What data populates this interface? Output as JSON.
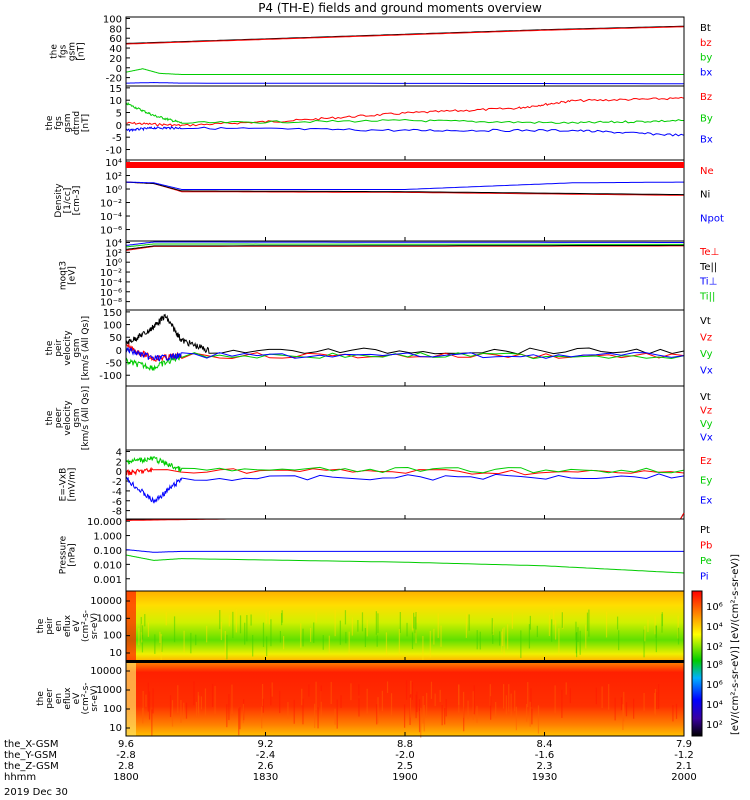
{
  "title": "P4 (TH-E) fields and ground moments overview",
  "date_label": "2019 Dec 30",
  "colors": {
    "black": "#000000",
    "red": "#ff0000",
    "green": "#00cc00",
    "blue": "#0000ff"
  },
  "x_axis": {
    "row_labels": [
      "the_X-GSM",
      "the_Y-GSM",
      "the_Z-GSM",
      "hhmm"
    ],
    "ticks": [
      {
        "x_pos": 0.0,
        "values": [
          "9.6",
          "-2.8",
          "2.8",
          "1800"
        ]
      },
      {
        "x_pos": 0.25,
        "values": [
          "9.2",
          "-2.4",
          "2.6",
          "1830"
        ]
      },
      {
        "x_pos": 0.5,
        "values": [
          "8.8",
          "-2.0",
          "2.5",
          "1900"
        ]
      },
      {
        "x_pos": 0.75,
        "values": [
          "8.4",
          "-1.6",
          "2.3",
          "1930"
        ]
      },
      {
        "x_pos": 1.0,
        "values": [
          "7.9",
          "-1.2",
          "2.1",
          "2000"
        ]
      }
    ]
  },
  "colorbar": {
    "ticks": [
      "10⁶",
      "10⁴",
      "10²"
    ],
    "ticks_lower": [
      "10⁸",
      "10⁶",
      "10⁴",
      "10²"
    ],
    "label": "[eV/(cm²-s-sr-eV)] [eV/(cm²-s-sr-eV)]"
  },
  "chart_data": [
    {
      "type": "line",
      "ylabel": [
        "the",
        "fgs",
        "gsm",
        "[nT]"
      ],
      "ylim": [
        -20,
        100
      ],
      "yticks": [
        "100",
        "80",
        "60",
        "40",
        "20",
        "0",
        "-20"
      ],
      "series": [
        {
          "name": "Bt",
          "color": "black",
          "x": [
            0,
            0.25,
            0.5,
            0.75,
            1
          ],
          "y": [
            54,
            62,
            70,
            78,
            84
          ]
        },
        {
          "name": "bz",
          "color": "red",
          "x": [
            0,
            0.25,
            0.5,
            0.75,
            1
          ],
          "y": [
            53,
            61,
            69,
            77,
            83
          ]
        },
        {
          "name": "by",
          "color": "green",
          "x": [
            0,
            0.03,
            0.06,
            0.1,
            1
          ],
          "y": [
            4,
            10,
            2,
            0,
            0
          ]
        },
        {
          "name": "bx",
          "color": "blue",
          "x": [
            0,
            0.05,
            0.1,
            1
          ],
          "y": [
            -15,
            -14,
            -15,
            -16
          ]
        }
      ]
    },
    {
      "type": "line",
      "ylabel": [
        "the",
        "fgs",
        "gsm",
        "dtrnd",
        "[nT]"
      ],
      "ylim": [
        -15,
        15
      ],
      "yticks": [
        "15",
        "10",
        "5",
        "0",
        "-5",
        "-10"
      ],
      "series": [
        {
          "name": "Bz",
          "color": "red",
          "x": [
            0,
            0.1,
            0.3,
            0.5,
            0.7,
            0.8,
            1
          ],
          "y": [
            0,
            -1,
            1,
            4,
            6,
            9,
            10
          ]
        },
        {
          "name": "By",
          "color": "green",
          "x": [
            0,
            0.05,
            0.1,
            0.5,
            0.8,
            1
          ],
          "y": [
            8,
            3,
            0,
            1,
            0,
            1
          ]
        },
        {
          "name": "Bx",
          "color": "blue",
          "x": [
            0,
            0.05,
            0.1,
            0.5,
            0.8,
            1
          ],
          "y": [
            -3,
            -2,
            -2,
            -3,
            -3,
            -5
          ]
        }
      ]
    },
    {
      "type": "line",
      "ylabel": [
        "Density",
        "[1/cc]",
        "[cm-3]"
      ],
      "ylim": [
        -6,
        5
      ],
      "log": true,
      "yticks": [
        "10⁴",
        "10²",
        "10⁰",
        "10⁻²",
        "10⁻⁴",
        "10⁻⁶"
      ],
      "series": [
        {
          "name": "Ne",
          "color": "red",
          "x": [
            0,
            0.05,
            0.1,
            0.5,
            1
          ],
          "y": [
            2,
            1.8,
            0.7,
            0.6,
            0.2
          ]
        },
        {
          "name": "Ni",
          "color": "black",
          "x": [
            0,
            0.05,
            0.1,
            0.5,
            1
          ],
          "y": [
            2,
            1.8,
            0.8,
            0.7,
            0.3
          ]
        },
        {
          "name": "Npot",
          "color": "blue",
          "x": [
            0,
            0.05,
            0.1,
            0.5,
            0.8,
            1
          ],
          "y": [
            2,
            1.9,
            1,
            1,
            1.9,
            2
          ]
        }
      ]
    },
    {
      "type": "line",
      "ylabel": [
        "moqt3",
        "[eV]"
      ],
      "ylim": [
        -10,
        4
      ],
      "log": true,
      "yticks": [
        "10⁴",
        "10²",
        "10⁰",
        "10⁻²",
        "10⁻⁴",
        "10⁻⁶",
        "10⁻⁸"
      ],
      "series": [
        {
          "name": "Te⊥",
          "color": "red",
          "x": [
            0,
            0.05,
            1
          ],
          "y": [
            2.1,
            2.9,
            3
          ]
        },
        {
          "name": "Te||",
          "color": "black",
          "x": [
            0,
            0.05,
            1
          ],
          "y": [
            2.3,
            3.0,
            3.1
          ]
        },
        {
          "name": "Ti⊥",
          "color": "blue",
          "x": [
            0,
            0.05,
            1
          ],
          "y": [
            3.1,
            3.8,
            3.7
          ]
        },
        {
          "name": "Ti||",
          "color": "green",
          "x": [
            0,
            0.05,
            1
          ],
          "y": [
            2.8,
            3.4,
            3.3
          ]
        }
      ]
    },
    {
      "type": "line",
      "ylabel": [
        "the",
        "peir",
        "velocity",
        "gsm",
        "[km/s (All Qs)]"
      ],
      "ylim": [
        -100,
        150
      ],
      "yticks": [
        "150",
        "100",
        "50",
        "0",
        "-50",
        "-100"
      ],
      "series": [
        {
          "name": "Vt",
          "color": "black",
          "x": [
            0,
            0.04,
            0.07,
            0.1,
            0.15,
            1
          ],
          "y": [
            40,
            80,
            130,
            50,
            15,
            15
          ]
        },
        {
          "name": "Vz",
          "color": "red",
          "x": [
            0,
            0.05,
            0.1,
            1
          ],
          "y": [
            30,
            -10,
            0,
            0
          ]
        },
        {
          "name": "Vy",
          "color": "green",
          "x": [
            0,
            0.05,
            0.1,
            1
          ],
          "y": [
            -20,
            -40,
            0,
            0
          ]
        },
        {
          "name": "Vx",
          "color": "blue",
          "x": [
            0,
            0.05,
            0.1,
            1
          ],
          "y": [
            20,
            -10,
            0,
            0
          ]
        }
      ]
    },
    {
      "type": "line",
      "ylabel": [
        "the",
        "peer",
        "velocity",
        "gsm",
        "[km/s (All Qs)]"
      ],
      "series_names": [
        "Vt",
        "Vz",
        "Vy",
        "Vx"
      ],
      "series": []
    },
    {
      "type": "line",
      "ylabel": [
        "E=-VxB",
        "[mV/m]"
      ],
      "ylim": [
        -8,
        4
      ],
      "yticks": [
        "4",
        "2",
        "0",
        "-2",
        "-4",
        "-6",
        "-8"
      ],
      "series": [
        {
          "name": "Ez",
          "color": "red",
          "x": [
            0,
            0.05,
            1
          ],
          "y": [
            0,
            0.5,
            0
          ]
        },
        {
          "name": "Ey",
          "color": "green",
          "x": [
            0,
            0.05,
            0.1,
            1
          ],
          "y": [
            2,
            2.5,
            0.5,
            0.5
          ]
        },
        {
          "name": "Ex",
          "color": "blue",
          "x": [
            0,
            0.05,
            0.1,
            1
          ],
          "y": [
            -1,
            -5,
            -1,
            -0.5
          ]
        }
      ]
    },
    {
      "type": "line",
      "ylabel": [
        "Pressure",
        "[nPa]"
      ],
      "ylim": [
        -3,
        1
      ],
      "log": true,
      "yticks": [
        "10.000",
        "1.000",
        "0.100",
        "0.010",
        "0.001"
      ],
      "series": [
        {
          "name": "Pt",
          "color": "black",
          "x": [
            0,
            0.25,
            0.5,
            0.75,
            1
          ],
          "y": [
            0.95,
            1.05,
            1.15,
            1.25,
            1.35
          ]
        },
        {
          "name": "Pb",
          "color": "red",
          "x": [
            0,
            0.25,
            0.5,
            0.75,
            1
          ],
          "y": [
            0.92,
            1.03,
            1.13,
            1.23,
            1.33
          ]
        },
        {
          "name": "Pe",
          "color": "green",
          "x": [
            0,
            0.05,
            0.1,
            0.5,
            0.75,
            1
          ],
          "y": [
            -1.0,
            -1.3,
            -1.2,
            -1.4,
            -1.6,
            -2.0
          ]
        },
        {
          "name": "Pi",
          "color": "blue",
          "x": [
            0,
            0.05,
            0.1,
            1
          ],
          "y": [
            -0.7,
            -0.85,
            -0.8,
            -0.8
          ]
        }
      ]
    },
    {
      "type": "heatmap",
      "ylabel": [
        "the",
        "peir",
        "en",
        "eflux",
        "eV",
        "(cm²-s-",
        "sr-eV)"
      ],
      "yticks": [
        "10000",
        "1000",
        "100",
        "10"
      ]
    },
    {
      "type": "heatmap",
      "ylabel": [
        "the",
        "peer",
        "en",
        "eflux",
        "eV",
        "(cm²-s-",
        "sr-eV)"
      ],
      "yticks": [
        "10000",
        "1000",
        "100",
        "10"
      ]
    }
  ]
}
